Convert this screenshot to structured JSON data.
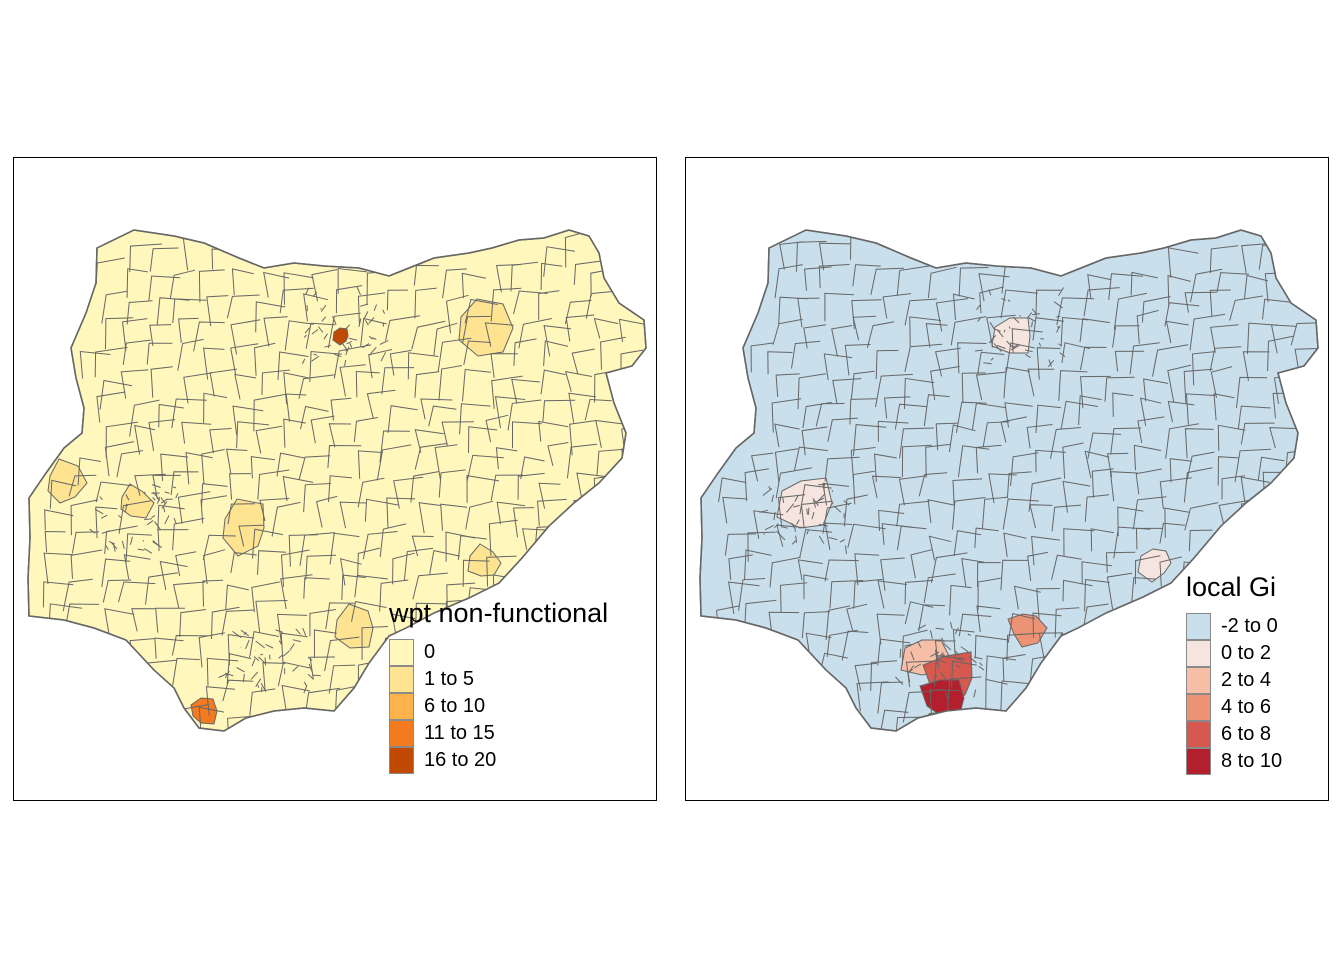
{
  "maps": [
    {
      "id": "left",
      "legend": {
        "title": "wpt non-functional",
        "items": [
          {
            "label": "0",
            "color": "#FFF7BC"
          },
          {
            "label": "1 to 5",
            "color": "#FEE391"
          },
          {
            "label": "6 to 10",
            "color": "#FEB24C"
          },
          {
            "label": "11 to 15",
            "color": "#F47A1F"
          },
          {
            "label": "16 to 20",
            "color": "#C14A02"
          }
        ]
      },
      "highlight_regions": [
        {
          "class": "1 to 5",
          "place": "west-border"
        },
        {
          "class": "1 to 5",
          "place": "southwest"
        },
        {
          "class": "1 to 5",
          "place": "center-south"
        },
        {
          "class": "1 to 5",
          "place": "southeast"
        },
        {
          "class": "1 to 5",
          "place": "east"
        },
        {
          "class": "1 to 5",
          "place": "northeast"
        },
        {
          "class": "11 to 15",
          "place": "south-coast"
        },
        {
          "class": "16 to 20",
          "place": "north-center"
        }
      ]
    },
    {
      "id": "right",
      "legend": {
        "title": "local Gi",
        "items": [
          {
            "label": "-2 to 0",
            "color": "#C9DFEC"
          },
          {
            "label": "0 to 2",
            "color": "#F6E5DE"
          },
          {
            "label": "2 to 4",
            "color": "#F6BEA6"
          },
          {
            "label": "4 to 6",
            "color": "#EC9376"
          },
          {
            "label": "6 to 8",
            "color": "#D6584E"
          },
          {
            "label": "8 to 10",
            "color": "#B41F2E"
          }
        ]
      },
      "highlight_regions": [
        {
          "class": "0 to 2",
          "place": "north-center"
        },
        {
          "class": "0 to 2",
          "place": "east"
        },
        {
          "class": "0 to 2",
          "place": "southwest"
        },
        {
          "class": "2 to 4",
          "place": "south"
        },
        {
          "class": "4 to 6",
          "place": "southeast"
        },
        {
          "class": "6 to 8",
          "place": "south-center"
        },
        {
          "class": "8 to 10",
          "place": "south-core"
        }
      ]
    }
  ],
  "style": {
    "border_color": "#666666",
    "frame_color": "#000000"
  }
}
